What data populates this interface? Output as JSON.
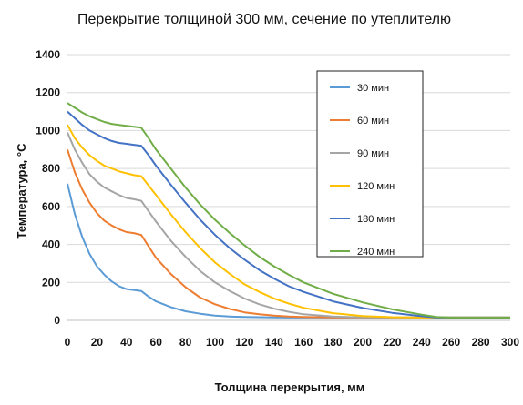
{
  "chart_data": {
    "type": "line",
    "title": "Перекрытие толщиной 300 мм,  сечение по утеплителю",
    "xlabel": "Толщина перекрытия, мм",
    "ylabel": "Температура, °С",
    "xlim": [
      0,
      300
    ],
    "ylim": [
      0,
      1400
    ],
    "x_ticks": [
      0,
      20,
      40,
      60,
      80,
      100,
      120,
      140,
      160,
      180,
      200,
      220,
      240,
      260,
      280,
      300
    ],
    "y_ticks": [
      0,
      200,
      400,
      600,
      800,
      1000,
      1200,
      1400
    ],
    "grid": "horizontal",
    "legend_position": "top-right",
    "series": [
      {
        "name": "30 мин",
        "color": "#5B9BD5",
        "x": [
          0,
          5,
          10,
          15,
          20,
          25,
          30,
          35,
          40,
          45,
          50,
          55,
          60,
          70,
          80,
          90,
          100,
          110,
          120,
          130,
          140,
          150,
          160,
          180,
          200,
          220,
          240,
          250,
          260,
          280,
          300
        ],
        "y": [
          720,
          560,
          440,
          350,
          285,
          240,
          205,
          180,
          165,
          160,
          155,
          125,
          100,
          70,
          48,
          35,
          25,
          20,
          18,
          17,
          16,
          15,
          15,
          15,
          15,
          15,
          15,
          15,
          15,
          15,
          15
        ]
      },
      {
        "name": "60 мин",
        "color": "#ED7D31",
        "x": [
          0,
          5,
          10,
          15,
          20,
          25,
          30,
          35,
          40,
          45,
          50,
          55,
          60,
          70,
          80,
          90,
          100,
          110,
          120,
          130,
          140,
          150,
          160,
          180,
          200,
          220,
          240,
          250,
          260,
          280,
          300
        ],
        "y": [
          900,
          780,
          690,
          620,
          565,
          525,
          500,
          480,
          465,
          460,
          450,
          390,
          330,
          245,
          175,
          120,
          85,
          60,
          42,
          32,
          25,
          20,
          18,
          16,
          15,
          15,
          15,
          15,
          15,
          15,
          15
        ]
      },
      {
        "name": "90 мин",
        "color": "#A5A5A5",
        "x": [
          0,
          5,
          10,
          15,
          20,
          25,
          30,
          35,
          40,
          45,
          50,
          55,
          60,
          70,
          80,
          90,
          100,
          110,
          120,
          130,
          140,
          150,
          160,
          180,
          200,
          220,
          240,
          250,
          260,
          280,
          300
        ],
        "y": [
          990,
          900,
          830,
          770,
          730,
          700,
          680,
          660,
          645,
          638,
          630,
          575,
          520,
          420,
          335,
          260,
          200,
          155,
          115,
          85,
          62,
          45,
          32,
          20,
          16,
          15,
          15,
          15,
          15,
          15,
          15
        ]
      },
      {
        "name": "120 мин",
        "color": "#FFC000",
        "x": [
          0,
          5,
          10,
          15,
          20,
          25,
          30,
          35,
          40,
          45,
          50,
          55,
          60,
          70,
          80,
          90,
          100,
          110,
          120,
          130,
          140,
          150,
          160,
          180,
          200,
          220,
          240,
          250,
          260,
          280,
          300
        ],
        "y": [
          1030,
          960,
          910,
          870,
          840,
          815,
          800,
          785,
          775,
          765,
          760,
          710,
          660,
          560,
          465,
          380,
          305,
          245,
          190,
          150,
          115,
          88,
          66,
          38,
          23,
          17,
          15,
          15,
          15,
          15,
          15
        ]
      },
      {
        "name": "180 мин",
        "color": "#4472C4",
        "x": [
          0,
          5,
          10,
          15,
          20,
          25,
          30,
          35,
          40,
          45,
          50,
          55,
          60,
          70,
          80,
          90,
          100,
          110,
          120,
          130,
          140,
          150,
          160,
          180,
          200,
          220,
          240,
          250,
          260,
          280,
          300
        ],
        "y": [
          1100,
          1065,
          1030,
          1000,
          980,
          960,
          945,
          935,
          930,
          925,
          920,
          870,
          815,
          715,
          620,
          530,
          450,
          380,
          320,
          265,
          220,
          180,
          150,
          100,
          65,
          40,
          22,
          15,
          15,
          15,
          15
        ]
      },
      {
        "name": "240 мин",
        "color": "#70AD47",
        "x": [
          0,
          5,
          10,
          15,
          20,
          25,
          30,
          35,
          40,
          45,
          50,
          55,
          60,
          70,
          80,
          90,
          100,
          110,
          120,
          130,
          140,
          150,
          160,
          180,
          200,
          220,
          240,
          250,
          260,
          280,
          300
        ],
        "y": [
          1145,
          1120,
          1095,
          1075,
          1060,
          1045,
          1035,
          1030,
          1025,
          1020,
          1015,
          960,
          900,
          800,
          700,
          610,
          530,
          460,
          395,
          335,
          285,
          240,
          200,
          140,
          95,
          58,
          30,
          18,
          15,
          15,
          15
        ]
      }
    ]
  }
}
